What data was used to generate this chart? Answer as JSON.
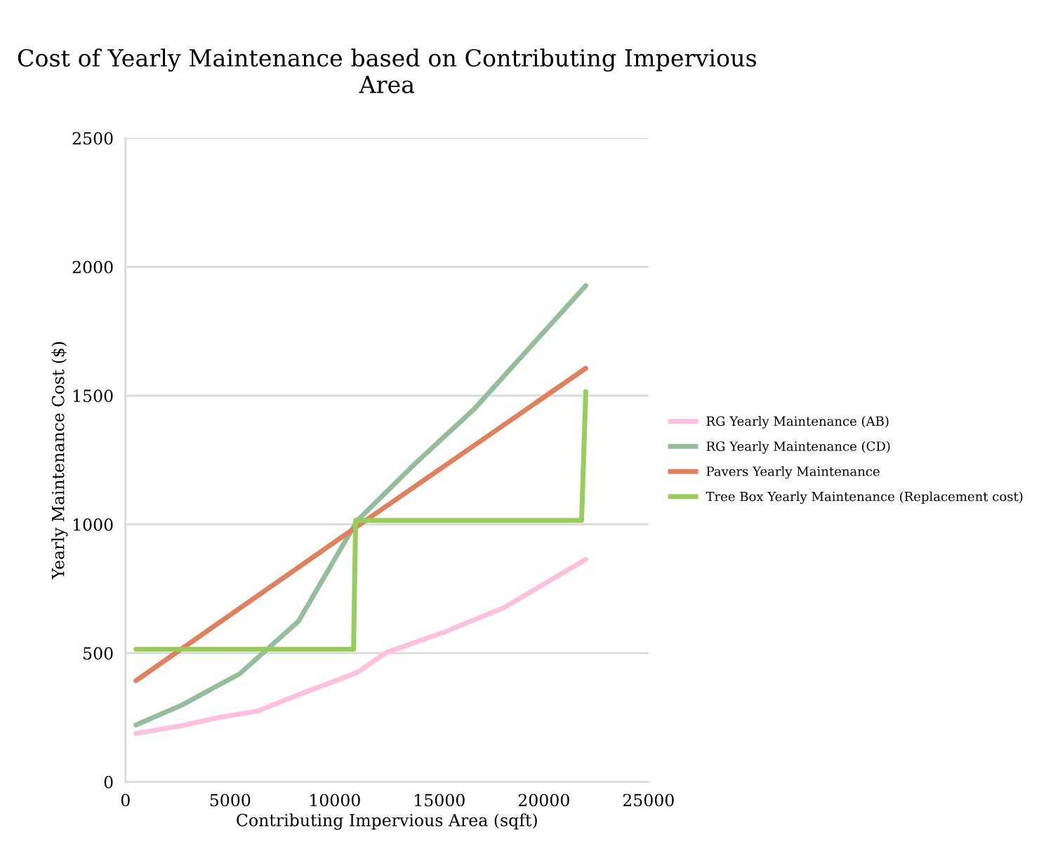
{
  "chart_data": {
    "type": "line",
    "title": "Cost of Yearly Maintenance based on Contributing Impervious Area",
    "xlabel": "Contributing Impervious Area (sqft)",
    "ylabel": "Yearly Maintenance Cost ($)",
    "xlim": [
      0,
      25000
    ],
    "xticks": [
      0,
      5000,
      10000,
      15000,
      20000,
      25000
    ],
    "ylim": [
      0,
      2500
    ],
    "yticks": [
      0,
      500,
      1000,
      1500,
      2000,
      2500
    ],
    "grid": "y",
    "legend": "right",
    "marker": "none",
    "line_style": "solid",
    "series": [
      {
        "name": "RG Yearly Maintenance (AB)",
        "color": "#ffbfdf",
        "x": [
          500,
          2660,
          4340,
          6300,
          8270,
          11070,
          12470,
          15270,
          18080,
          22000
        ],
        "values": [
          188,
          218,
          248,
          275,
          338,
          425,
          502,
          583,
          676,
          864
        ]
      },
      {
        "name": "RG Yearly Maintenance (CD)",
        "color": "#93bd9b",
        "x": [
          500,
          2660,
          5460,
          8270,
          11070,
          13870,
          16670,
          19480,
          22000
        ],
        "values": [
          221,
          297,
          420,
          624,
          1014,
          1238,
          1448,
          1701,
          1927
        ]
      },
      {
        "name": "Pavers Yearly Maintenance",
        "color": "#e2805d",
        "x": [
          500,
          11000,
          22000
        ],
        "values": [
          393,
          988,
          1606
        ]
      },
      {
        "name": "Tree Box Yearly Maintenance (Replacement cost)",
        "color": "#98cd5a",
        "x": [
          500,
          10900,
          11000,
          21800,
          22000
        ],
        "values": [
          515,
          515,
          1015,
          1015,
          1515
        ]
      }
    ]
  }
}
